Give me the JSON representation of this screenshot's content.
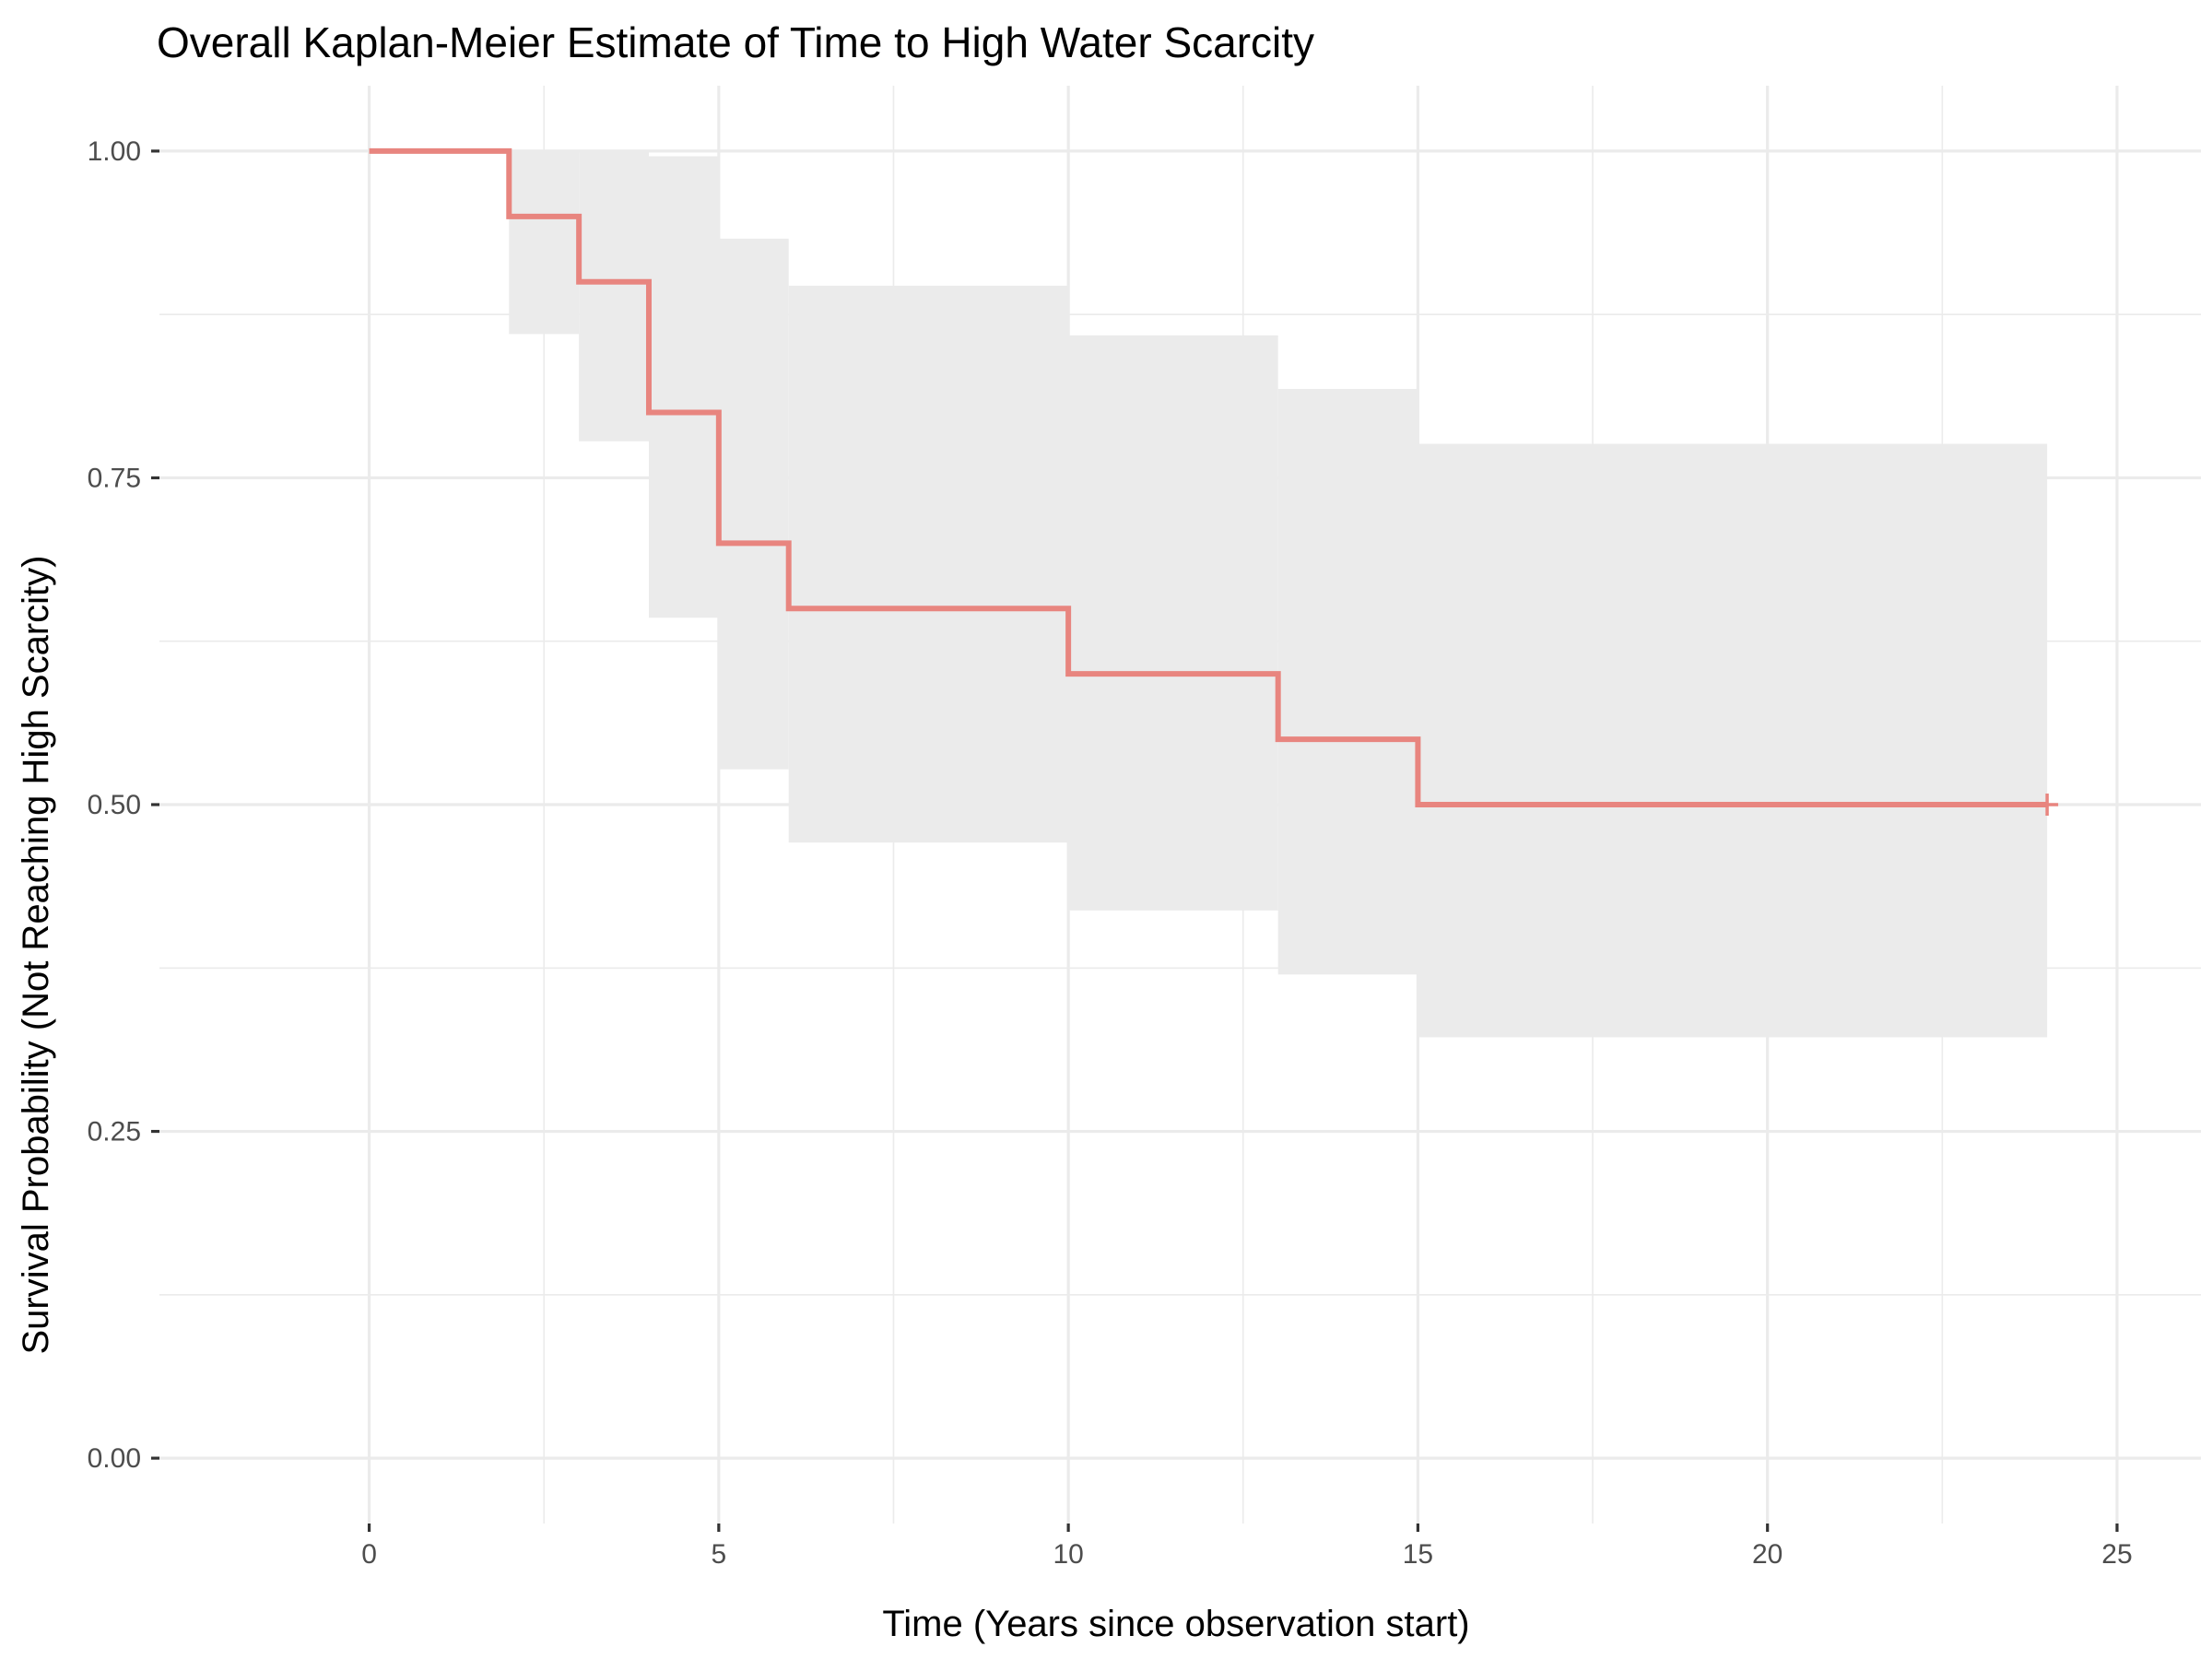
{
  "chart_data": {
    "type": "line",
    "title": "Overall Kaplan-Meier Estimate of Time to High Water Scarcity",
    "xlabel": "Time (Years since observation start)",
    "ylabel": "Survival Probability (Not Reaching High Scarcity)",
    "xlim": [
      -3,
      26.2
    ],
    "ylim": [
      -0.05,
      1.05
    ],
    "x_ticks": [
      0,
      5,
      10,
      15,
      20,
      25
    ],
    "x_tick_labels": [
      "0",
      "5",
      "10",
      "15",
      "20",
      "25"
    ],
    "y_ticks": [
      0,
      0.25,
      0.5,
      0.75,
      1.0
    ],
    "y_tick_labels": [
      "0.00",
      "0.25",
      "0.50",
      "0.75",
      "1.00"
    ],
    "grid": true,
    "legend": "none",
    "line_color": "#E8857F",
    "band_color": "#EBEBEB",
    "series": [
      {
        "step_times": [
          0,
          2,
          3,
          4,
          5,
          6,
          10,
          13,
          15
        ],
        "survival": [
          1.0,
          0.95,
          0.9,
          0.8,
          0.7,
          0.65,
          0.6,
          0.55,
          0.5
        ],
        "ci_upper": [
          1.0,
          1.0,
          1.0,
          0.996,
          0.933,
          0.897,
          0.859,
          0.818,
          0.776
        ],
        "ci_lower": [
          1.0,
          0.86,
          0.778,
          0.643,
          0.527,
          0.471,
          0.419,
          0.37,
          0.322
        ],
        "end_time": 24,
        "censored_at": [
          24
        ]
      }
    ]
  }
}
